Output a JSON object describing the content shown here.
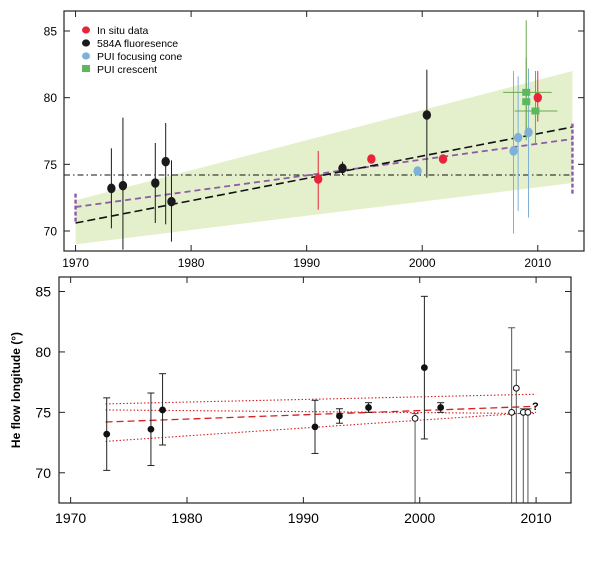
{
  "chart_data": [
    {
      "type": "scatter",
      "title": "",
      "xlabel": "",
      "ylabel": "",
      "xlim": [
        1969,
        2014
      ],
      "ylim": [
        68.5,
        86.5
      ],
      "x_ticks": [
        1970,
        1980,
        1990,
        2000,
        2010
      ],
      "y_ticks": [
        70,
        75,
        80,
        85
      ],
      "grid": false,
      "legend_position": "top-left",
      "colors": {
        "in_situ": "#e8243b",
        "fluorescence": "#1a1a1a",
        "focusing_cone": "#7fb0d8",
        "crescent": "#5cb85c",
        "band": "#e4f0cc",
        "fit_black": "#111111",
        "fit_purple": "#8e5ba8",
        "errbar_green": "#6aa84f",
        "errbar_blue": "#7fb0d8",
        "errbar_red": "#e8243b"
      },
      "series": [
        {
          "name": "In situ data",
          "key": "in_situ",
          "marker": "circle",
          "points": [
            {
              "x": 1991.0,
              "y": 73.9,
              "lo": 71.6,
              "hi": 76.0
            },
            {
              "x": 1995.6,
              "y": 75.4,
              "lo": 75.2,
              "hi": 75.7
            },
            {
              "x": 2001.8,
              "y": 75.4,
              "lo": 75.2,
              "hi": 75.7
            },
            {
              "x": 2010.0,
              "y": 80.0,
              "lo": 78.2,
              "hi": 82.0
            }
          ]
        },
        {
          "name": "584A fluoresence",
          "key": "fluorescence",
          "marker": "circle",
          "points": [
            {
              "x": 1973.1,
              "y": 73.2,
              "lo": 70.2,
              "hi": 76.2
            },
            {
              "x": 1974.1,
              "y": 73.4,
              "lo": 68.6,
              "hi": 78.5
            },
            {
              "x": 1976.9,
              "y": 73.6,
              "lo": 70.6,
              "hi": 76.6
            },
            {
              "x": 1977.8,
              "y": 75.2,
              "lo": 70.5,
              "hi": 78.1
            },
            {
              "x": 1978.3,
              "y": 72.2,
              "lo": 69.2,
              "hi": 75.3
            },
            {
              "x": 1993.1,
              "y": 74.7,
              "lo": 74.2,
              "hi": 75.2
            },
            {
              "x": 2000.4,
              "y": 78.7,
              "lo": 74.0,
              "hi": 82.1
            }
          ]
        },
        {
          "name": "PUI focusing cone",
          "key": "focusing_cone",
          "marker": "circle",
          "points": [
            {
              "x": 1999.6,
              "y": 74.5,
              "lo": 74.3,
              "hi": 74.7
            },
            {
              "x": 2007.9,
              "y": 76.0,
              "lo": 69.8,
              "hi": 82.0
            },
            {
              "x": 2008.3,
              "y": 77.0,
              "lo": 71.5,
              "hi": 81.6
            },
            {
              "x": 2009.2,
              "y": 77.4,
              "lo": 71.0,
              "hi": 82.2
            }
          ]
        },
        {
          "name": "PUI crescent",
          "key": "crescent",
          "marker": "square",
          "points": [
            {
              "x": 2009.0,
              "y": 80.4,
              "lo": 76.8,
              "hi": 85.8,
              "xlo": 2007.0,
              "xhi": 2011.2
            },
            {
              "x": 2009.0,
              "y": 79.7,
              "lo": 77.0,
              "hi": 83.0
            },
            {
              "x": 2009.8,
              "y": 79.0,
              "lo": 76.5,
              "hi": 82.0,
              "xlo": 2008.0,
              "xhi": 2011.7
            }
          ]
        }
      ],
      "fits": {
        "linear_black": {
          "x": [
            1970,
            2013
          ],
          "y": [
            70.6,
            77.8
          ]
        },
        "linear_purple": {
          "x": [
            1970,
            2013
          ],
          "y": [
            71.8,
            76.9
          ]
        },
        "constant": {
          "x": [
            1969,
            2013
          ],
          "y": 74.2
        },
        "band": {
          "x": [
            1970,
            2013
          ],
          "lower": [
            69.0,
            73.6
          ],
          "upper": [
            72.3,
            82.0
          ]
        },
        "edge_bars": [
          {
            "x": 1970,
            "lo": 70.7,
            "hi": 72.9
          },
          {
            "x": 2013,
            "lo": 72.8,
            "hi": 78.2
          }
        ]
      }
    },
    {
      "type": "scatter",
      "title": "",
      "xlabel": "",
      "ylabel": "He flow longitude (°)",
      "xlim": [
        1969,
        2013
      ],
      "ylim": [
        67.5,
        86.2
      ],
      "x_ticks": [
        1970,
        1980,
        1990,
        2000,
        2010
      ],
      "y_ticks": [
        70,
        75,
        80,
        85
      ],
      "grid": false,
      "annotation": "?",
      "points": [
        {
          "x": 1973.1,
          "y": 73.2,
          "lo": 70.2,
          "hi": 76.2,
          "filled": true
        },
        {
          "x": 1976.9,
          "y": 73.6,
          "lo": 70.6,
          "hi": 76.6,
          "filled": true
        },
        {
          "x": 1977.9,
          "y": 75.2,
          "lo": 72.3,
          "hi": 78.2,
          "filled": true
        },
        {
          "x": 1991.0,
          "y": 73.8,
          "lo": 71.6,
          "hi": 76.0,
          "filled": true
        },
        {
          "x": 1993.1,
          "y": 74.7,
          "lo": 74.1,
          "hi": 75.3,
          "filled": true
        },
        {
          "x": 1995.6,
          "y": 75.4,
          "lo": 75.0,
          "hi": 75.8,
          "filled": true
        },
        {
          "x": 1999.6,
          "y": 74.5,
          "lo": 67.5,
          "hi": 74.9,
          "filled": false
        },
        {
          "x": 2000.4,
          "y": 78.7,
          "lo": 72.8,
          "hi": 84.6,
          "filled": true
        },
        {
          "x": 2001.8,
          "y": 75.4,
          "lo": 75.0,
          "hi": 75.8,
          "filled": true
        },
        {
          "x": 2007.9,
          "y": 75.0,
          "lo": 67.5,
          "hi": 82.0,
          "filled": false
        },
        {
          "x": 2008.3,
          "y": 77.0,
          "lo": 67.5,
          "hi": 78.5,
          "filled": false
        },
        {
          "x": 2008.9,
          "y": 75.0,
          "lo": 67.5,
          "hi": 75.3,
          "filled": false
        },
        {
          "x": 2009.3,
          "y": 75.0,
          "lo": 67.5,
          "hi": 75.3,
          "filled": false
        }
      ],
      "fits": {
        "central": {
          "x": [
            1973,
            2010
          ],
          "y": [
            74.2,
            75.5
          ]
        },
        "upper": {
          "x": [
            1973,
            2010
          ],
          "y": [
            75.7,
            76.5
          ]
        },
        "lower": {
          "x": [
            1973,
            2010
          ],
          "y": [
            72.6,
            75.0
          ]
        },
        "flat": {
          "x": [
            1973,
            2010
          ],
          "y": [
            75.2,
            74.9
          ]
        }
      }
    }
  ]
}
